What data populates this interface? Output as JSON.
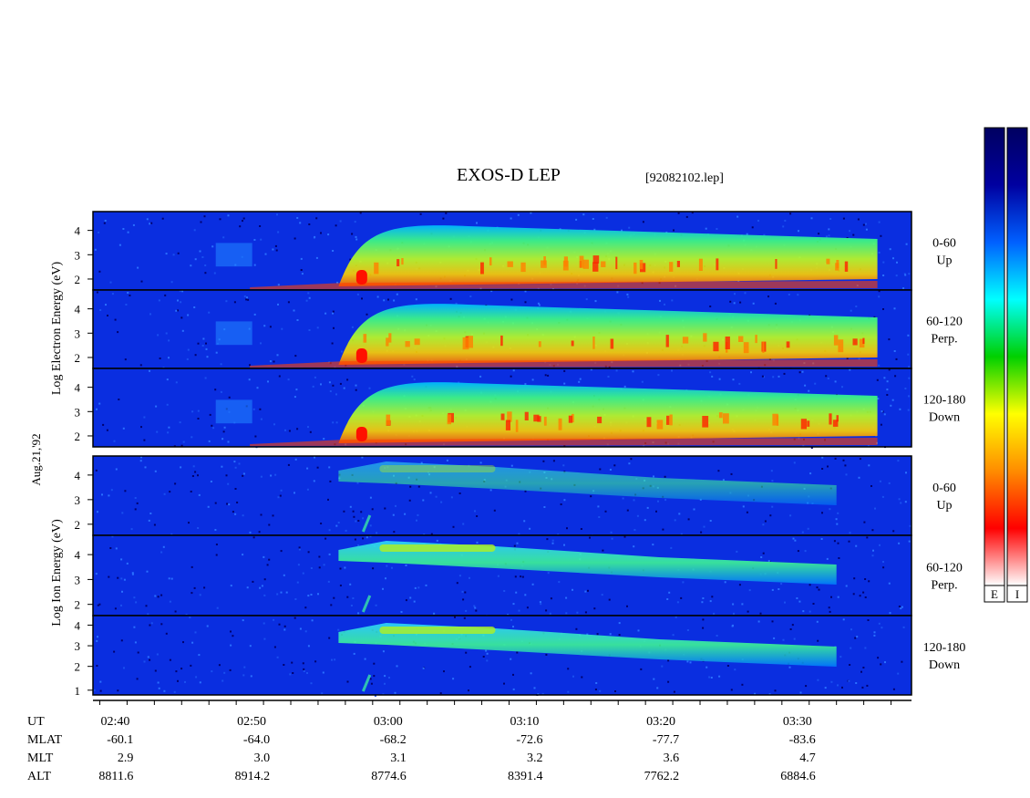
{
  "header": {
    "title": "EXOS-D LEP",
    "filename": "[92082102.lep]"
  },
  "date_label": "Aug.21,'92",
  "colors": {
    "background": "#ffffff",
    "panel_base": "#0a2ee0",
    "panel_dark": "#00006e"
  },
  "colorbars": {
    "stops": [
      "#ffffff",
      "#ff0000",
      "#ff8c00",
      "#ffff00",
      "#00d000",
      "#00ffff",
      "#0060ff",
      "#0000a0",
      "#000060"
    ],
    "labels": [
      "E",
      "I"
    ]
  },
  "chart_data": {
    "type": "heatmap",
    "title": "EXOS-D LEP",
    "subtitle": "[92082102.lep]",
    "x_axis": {
      "ticks": [
        "02:40",
        "02:50",
        "03:00",
        "03:10",
        "03:20",
        "03:30"
      ],
      "range_minutes": [
        -1.5,
        58.5
      ]
    },
    "groups": [
      {
        "species": "Electron",
        "ylabel": [
          "Log",
          "Electron",
          "Energy",
          "(eV)"
        ],
        "panels": [
          {
            "pitch": "0-60",
            "direction": "Up",
            "yticks": [
              "2",
              "3",
              "4"
            ]
          },
          {
            "pitch": "60-120",
            "direction": "Perp.",
            "yticks": [
              "2",
              "3",
              "4"
            ]
          },
          {
            "pitch": "120-180",
            "direction": "Down",
            "yticks": [
              "2",
              "3",
              "4"
            ]
          }
        ]
      },
      {
        "species": "Ion",
        "ylabel": [
          "Log",
          "Ion",
          "Energy",
          "(eV)"
        ],
        "panels": [
          {
            "pitch": "0-60",
            "direction": "Up",
            "yticks": [
              "2",
              "3",
              "4"
            ]
          },
          {
            "pitch": "60-120",
            "direction": "Perp.",
            "yticks": [
              "2",
              "3",
              "4"
            ]
          },
          {
            "pitch": "120-180",
            "direction": "Down",
            "yticks": [
              "1",
              "2",
              "3",
              "4"
            ]
          }
        ]
      }
    ],
    "ephemeris": {
      "labels": [
        "UT",
        "MLAT",
        "MLT",
        "ALT"
      ],
      "UT": [
        "02:40",
        "02:50",
        "03:00",
        "03:10",
        "03:20",
        "03:30"
      ],
      "MLAT": [
        "-60.1",
        "-64.0",
        "-68.2",
        "-72.6",
        "-77.7",
        "-83.6"
      ],
      "MLT": [
        "2.9",
        "3.0",
        "3.1",
        "3.2",
        "3.6",
        "4.7"
      ],
      "ALT": [
        "8811.6",
        "8914.2",
        "8774.6",
        "8391.4",
        "7762.2",
        "6884.6"
      ]
    }
  }
}
